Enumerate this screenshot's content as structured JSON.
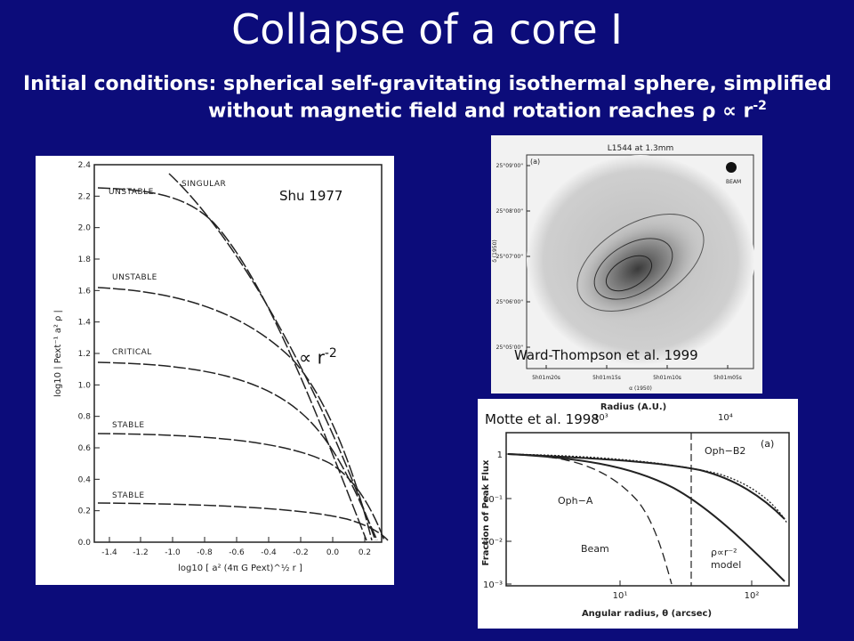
{
  "slide": {
    "title": "Collapse of a core I",
    "intro_line1": "Initial conditions: spherical self-gravitating isothermal sphere, simplified",
    "intro_line2_prefix": "without magnetic field and rotation reaches ",
    "intro_symbols": "ρ ∝ r",
    "intro_exponent": "-2"
  },
  "fig_shu": {
    "citation": "Shu 1977",
    "annotation_prefix": "∝ r",
    "annotation_exponent": "-2",
    "ylabel": "log10 | Pext⁻¹ a² ρ |",
    "xlabel": "log10 [ a² (4π G Pext)^½ r ]",
    "yticks": [
      "2.4",
      "2.2",
      "2.0",
      "1.8",
      "1.6",
      "1.4",
      "1.2",
      "1.0",
      "0.8",
      "0.6",
      "0.4",
      "0.2",
      "0.0"
    ],
    "xticks": [
      "-1.4",
      "-1.2",
      "-1.0",
      "-0.8",
      "-0.6",
      "-0.4",
      "-0.2",
      "0.0",
      "0.2"
    ],
    "curve_labels": [
      "SINGULAR",
      "UNSTABLE",
      "UNSTABLE",
      "CRITICAL",
      "STABLE",
      "STABLE"
    ]
  },
  "fig_ward": {
    "citation": "Ward-Thompson et al. 1999",
    "map_title": "L1544 at 1.3mm",
    "panel": "(a)",
    "beam": "BEAM",
    "dec_ticks": [
      "25°09'00\"",
      "25°08'00\"",
      "25°07'00\"",
      "25°06'00\"",
      "25°05'00\""
    ],
    "ra_ticks": [
      "5h01m20s",
      "5h01m15s",
      "5h01m10s",
      "5h01m05s"
    ],
    "ylabel": "δ (1950)",
    "xlabel": "α (1950)"
  },
  "fig_motte": {
    "citation": "Motte et al. 1998",
    "top_axis_label": "Radius (A.U.)",
    "top_ticks": [
      "10³",
      "10⁴"
    ],
    "xlabel": "Angular radius, θ (arcsec)",
    "ylabel": "Fraction of Peak Flux",
    "yticks": [
      "1",
      "10⁻¹",
      "10⁻²",
      "10⁻³"
    ],
    "xticks": [
      "10¹",
      "10²"
    ],
    "panel": "(a)",
    "curve_labels": [
      "Oph−B2",
      "Oph−A",
      "Beam",
      "ρ∝r⁻²",
      "model"
    ]
  }
}
